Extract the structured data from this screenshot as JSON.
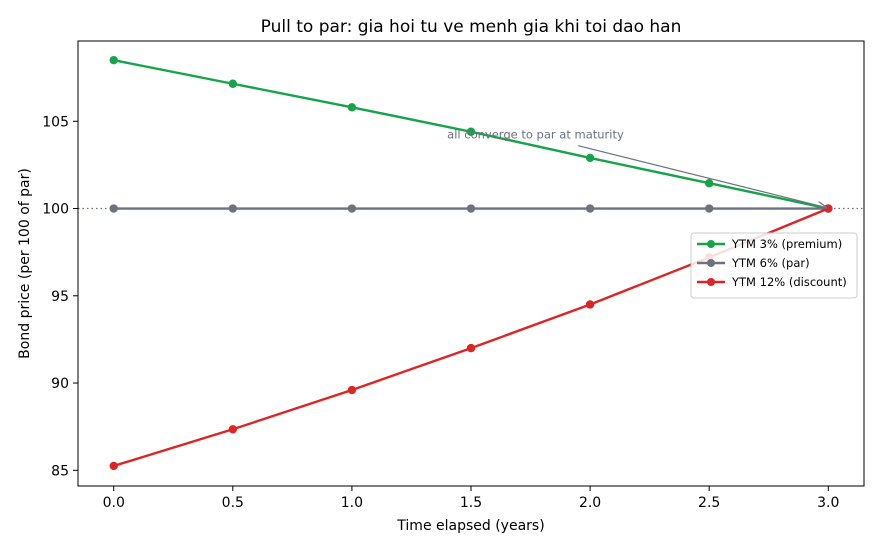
{
  "chart_data": {
    "type": "line",
    "title": "Pull to par: gia hoi tu ve menh gia khi toi dao han",
    "xlabel": "Time elapsed (years)",
    "ylabel": "Bond price (per 100 of par)",
    "x": [
      0.0,
      0.5,
      1.0,
      1.5,
      2.0,
      2.5,
      3.0
    ],
    "xticks": [
      "0.0",
      "0.5",
      "1.0",
      "1.5",
      "2.0",
      "2.5",
      "3.0"
    ],
    "yticks": [
      "85",
      "90",
      "95",
      "100",
      "105"
    ],
    "xlim": [
      -0.15,
      3.15
    ],
    "ylim": [
      84.1,
      109.6
    ],
    "grid": false,
    "legend_position": "center-right",
    "reference_line": {
      "y": 100,
      "style": "dotted",
      "color": "#6b7280"
    },
    "series": [
      {
        "name": "YTM 3% (premium)",
        "color": "#16a34a",
        "values": [
          108.5,
          107.15,
          105.8,
          104.4,
          102.9,
          101.45,
          100.0
        ]
      },
      {
        "name": "YTM 6% (par)",
        "color": "#6b7280",
        "values": [
          100.0,
          100.0,
          100.0,
          100.0,
          100.0,
          100.0,
          100.0
        ]
      },
      {
        "name": "YTM 12% (discount)",
        "color": "#dc2626",
        "values": [
          85.25,
          87.35,
          89.6,
          92.0,
          94.5,
          97.2,
          100.0
        ]
      }
    ],
    "annotation": {
      "text": "all converge to par at maturity",
      "color": "#6b7280",
      "text_x": 1.4,
      "text_y": 104.0,
      "arrow_start_x": 1.95,
      "arrow_start_y": 103.6,
      "arrow_end_x": 3.0,
      "arrow_end_y": 100.0
    }
  }
}
